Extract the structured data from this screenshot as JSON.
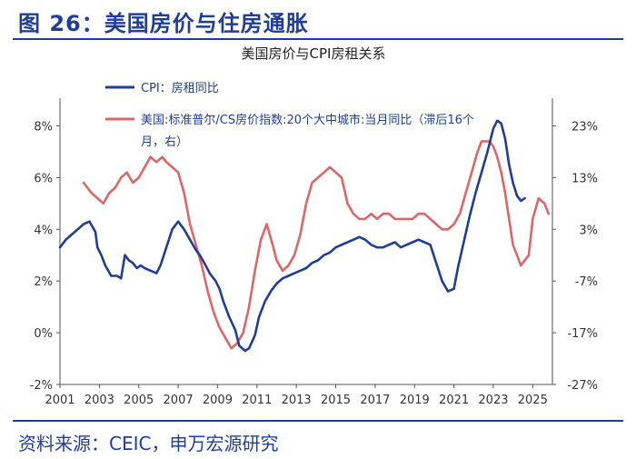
{
  "figure": {
    "title": "图 26：美国房价与住房通胀",
    "source": "资料来源：CEIC，申万宏源研究"
  },
  "colors": {
    "cpi": "#1f3d99",
    "cs": "#e06666",
    "header": "#1f3d99",
    "axis": "#555555"
  },
  "chart_data": {
    "type": "line",
    "title": "美国房价与CPI房租关系",
    "legend": [
      "CPI：房租同比",
      "美国:标准普尔/CS房价指数:20个大中城市:当月同比（滞后16个",
      "月，右）"
    ],
    "x_ticks": [
      "2001",
      "2003",
      "2005",
      "2007",
      "2009",
      "2011",
      "2013",
      "2015",
      "2017",
      "2019",
      "2021",
      "2023",
      "2025"
    ],
    "y_left_ticks": [
      "-2%",
      "0%",
      "2%",
      "4%",
      "6%",
      "8%"
    ],
    "y_right_ticks": [
      "-27%",
      "-17%",
      "-7%",
      "3%",
      "13%",
      "23%"
    ],
    "ylim_left": [
      -2,
      9
    ],
    "ylim_right": [
      -27,
      28
    ],
    "xlim": [
      2001,
      2026
    ],
    "series": [
      {
        "name": "CPI：房租同比",
        "axis": "left",
        "x": [
          2001.0,
          2001.3,
          2001.6,
          2001.9,
          2002.2,
          2002.5,
          2002.8,
          2002.9,
          2003.1,
          2003.3,
          2003.6,
          2003.9,
          2004.1,
          2004.3,
          2004.5,
          2004.7,
          2004.9,
          2005.1,
          2005.3,
          2005.6,
          2005.9,
          2006.1,
          2006.4,
          2006.7,
          2007.0,
          2007.3,
          2007.6,
          2007.9,
          2008.1,
          2008.4,
          2008.6,
          2008.9,
          2009.1,
          2009.3,
          2009.6,
          2009.9,
          2010.1,
          2010.4,
          2010.6,
          2010.9,
          2011.1,
          2011.4,
          2011.7,
          2012.0,
          2012.3,
          2012.6,
          2012.9,
          2013.2,
          2013.5,
          2013.8,
          2014.1,
          2014.4,
          2014.7,
          2015.0,
          2015.3,
          2015.6,
          2015.9,
          2016.2,
          2016.5,
          2016.8,
          2017.1,
          2017.4,
          2017.7,
          2018.0,
          2018.3,
          2018.6,
          2018.9,
          2019.2,
          2019.5,
          2019.8,
          2020.1,
          2020.4,
          2020.7,
          2021.0,
          2021.2,
          2021.5,
          2021.8,
          2022.1,
          2022.4,
          2022.7,
          2023.0,
          2023.2,
          2023.4,
          2023.6,
          2023.8,
          2024.0,
          2024.2,
          2024.4,
          2024.6
        ],
        "values": [
          3.3,
          3.6,
          3.8,
          4.0,
          4.2,
          4.3,
          3.9,
          3.3,
          3.0,
          2.6,
          2.2,
          2.2,
          2.1,
          3.0,
          2.8,
          2.7,
          2.5,
          2.6,
          2.5,
          2.4,
          2.3,
          2.6,
          3.3,
          4.0,
          4.3,
          4.0,
          3.6,
          3.2,
          3.0,
          2.6,
          2.3,
          2.0,
          1.7,
          1.2,
          0.6,
          0.1,
          -0.5,
          -0.7,
          -0.6,
          -0.1,
          0.6,
          1.2,
          1.6,
          1.9,
          2.1,
          2.2,
          2.3,
          2.4,
          2.5,
          2.7,
          2.8,
          3.0,
          3.1,
          3.3,
          3.4,
          3.5,
          3.6,
          3.7,
          3.6,
          3.4,
          3.3,
          3.3,
          3.4,
          3.5,
          3.3,
          3.4,
          3.5,
          3.6,
          3.5,
          3.4,
          2.7,
          2.0,
          1.6,
          1.7,
          2.5,
          3.5,
          4.5,
          5.4,
          6.2,
          7.0,
          7.9,
          8.2,
          8.1,
          7.5,
          6.5,
          5.8,
          5.3,
          5.1,
          5.2
        ]
      },
      {
        "name": "美国:标准普尔/CS房价指数:20个大中城市:当月同比（滞后16个月，右）",
        "axis": "right",
        "x": [
          2002.2,
          2002.4,
          2002.6,
          2002.9,
          2003.2,
          2003.5,
          2003.8,
          2004.1,
          2004.4,
          2004.7,
          2005.0,
          2005.3,
          2005.6,
          2005.9,
          2006.2,
          2006.4,
          2006.7,
          2007.0,
          2007.3,
          2007.6,
          2007.9,
          2008.2,
          2008.5,
          2008.8,
          2009.1,
          2009.4,
          2009.7,
          2010.0,
          2010.3,
          2010.6,
          2010.9,
          2011.2,
          2011.5,
          2011.8,
          2012.0,
          2012.3,
          2012.6,
          2012.9,
          2013.2,
          2013.5,
          2013.8,
          2014.1,
          2014.4,
          2014.7,
          2015.0,
          2015.3,
          2015.6,
          2015.9,
          2016.2,
          2016.5,
          2016.8,
          2017.1,
          2017.4,
          2017.7,
          2018.0,
          2018.3,
          2018.6,
          2018.9,
          2019.2,
          2019.5,
          2019.8,
          2020.1,
          2020.4,
          2020.7,
          2021.0,
          2021.3,
          2021.6,
          2021.9,
          2022.2,
          2022.4,
          2022.6,
          2022.8,
          2023.0,
          2023.2,
          2023.4,
          2023.6,
          2023.8,
          2024.0,
          2024.2,
          2024.4,
          2024.6,
          2024.8,
          2025.0,
          2025.3,
          2025.6,
          2025.8
        ],
        "values": [
          12,
          11,
          10,
          9,
          8,
          10,
          11,
          13,
          14,
          12,
          13,
          15,
          17,
          16,
          17,
          16,
          15,
          14,
          10,
          4,
          0,
          -4,
          -9,
          -13,
          -16,
          -18,
          -20,
          -19,
          -17,
          -12,
          -5,
          1,
          4,
          0,
          -3,
          -5,
          -4,
          -2,
          2,
          8,
          12,
          13,
          14,
          15,
          14,
          13,
          8,
          6,
          5,
          5,
          6,
          5,
          6,
          6,
          5,
          5,
          5,
          5,
          6,
          6,
          5,
          4,
          3,
          3,
          4,
          6,
          10,
          14,
          18,
          20,
          20,
          20,
          19,
          17,
          14,
          10,
          5,
          0,
          -2,
          -4,
          -3,
          -2,
          5,
          9,
          8,
          6
        ]
      }
    ]
  }
}
